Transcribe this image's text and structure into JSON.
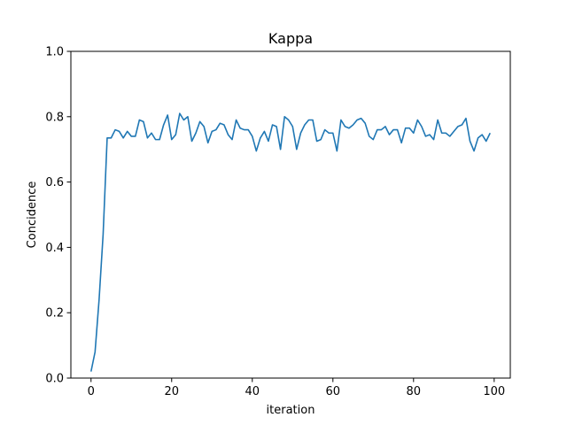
{
  "chart_data": {
    "type": "line",
    "title": "Kappa",
    "xlabel": "iteration",
    "ylabel": "Concidence",
    "xlim": [
      -5,
      104
    ],
    "ylim": [
      0.0,
      1.0
    ],
    "xticks": [
      0,
      20,
      40,
      60,
      80,
      100
    ],
    "xtick_labels": [
      "0",
      "20",
      "40",
      "60",
      "80",
      "100"
    ],
    "yticks": [
      0.0,
      0.2,
      0.4,
      0.6,
      0.8,
      1.0
    ],
    "ytick_labels": [
      "0.0",
      "0.2",
      "0.4",
      "0.6",
      "0.8",
      "1.0"
    ],
    "grid": false,
    "line_color": "#1f77b4",
    "series": [
      {
        "x": [
          0,
          1,
          2,
          3,
          4,
          5,
          6,
          7,
          8,
          9,
          10,
          11,
          12,
          13,
          14,
          15,
          16,
          17,
          18,
          19,
          20,
          21,
          22,
          23,
          24,
          25,
          26,
          27,
          28,
          29,
          30,
          31,
          32,
          33,
          34,
          35,
          36,
          37,
          38,
          39,
          40,
          41,
          42,
          43,
          44,
          45,
          46,
          47,
          48,
          49,
          50,
          51,
          52,
          53,
          54,
          55,
          56,
          57,
          58,
          59,
          60,
          61,
          62,
          63,
          64,
          65,
          66,
          67,
          68,
          69,
          70,
          71,
          72,
          73,
          74,
          75,
          76,
          77,
          78,
          79,
          80,
          81,
          82,
          83,
          84,
          85,
          86,
          87,
          88,
          89,
          90,
          91,
          92,
          93,
          94,
          95,
          96,
          97,
          98,
          99
        ],
        "values": [
          0.02,
          0.08,
          0.24,
          0.44,
          0.735,
          0.735,
          0.76,
          0.755,
          0.735,
          0.755,
          0.74,
          0.74,
          0.79,
          0.785,
          0.735,
          0.75,
          0.73,
          0.73,
          0.775,
          0.805,
          0.73,
          0.745,
          0.81,
          0.79,
          0.8,
          0.725,
          0.75,
          0.785,
          0.77,
          0.72,
          0.755,
          0.76,
          0.78,
          0.775,
          0.745,
          0.73,
          0.79,
          0.765,
          0.76,
          0.76,
          0.74,
          0.695,
          0.735,
          0.755,
          0.725,
          0.775,
          0.77,
          0.7,
          0.8,
          0.79,
          0.77,
          0.7,
          0.75,
          0.775,
          0.79,
          0.79,
          0.725,
          0.73,
          0.76,
          0.75,
          0.75,
          0.695,
          0.79,
          0.77,
          0.765,
          0.775,
          0.79,
          0.795,
          0.78,
          0.74,
          0.73,
          0.76,
          0.76,
          0.77,
          0.745,
          0.76,
          0.76,
          0.72,
          0.765,
          0.765,
          0.75,
          0.79,
          0.77,
          0.74,
          0.745,
          0.73,
          0.79,
          0.75,
          0.75,
          0.74,
          0.755,
          0.77,
          0.775,
          0.795,
          0.725,
          0.695,
          0.735,
          0.745,
          0.725,
          0.75
        ]
      }
    ]
  }
}
